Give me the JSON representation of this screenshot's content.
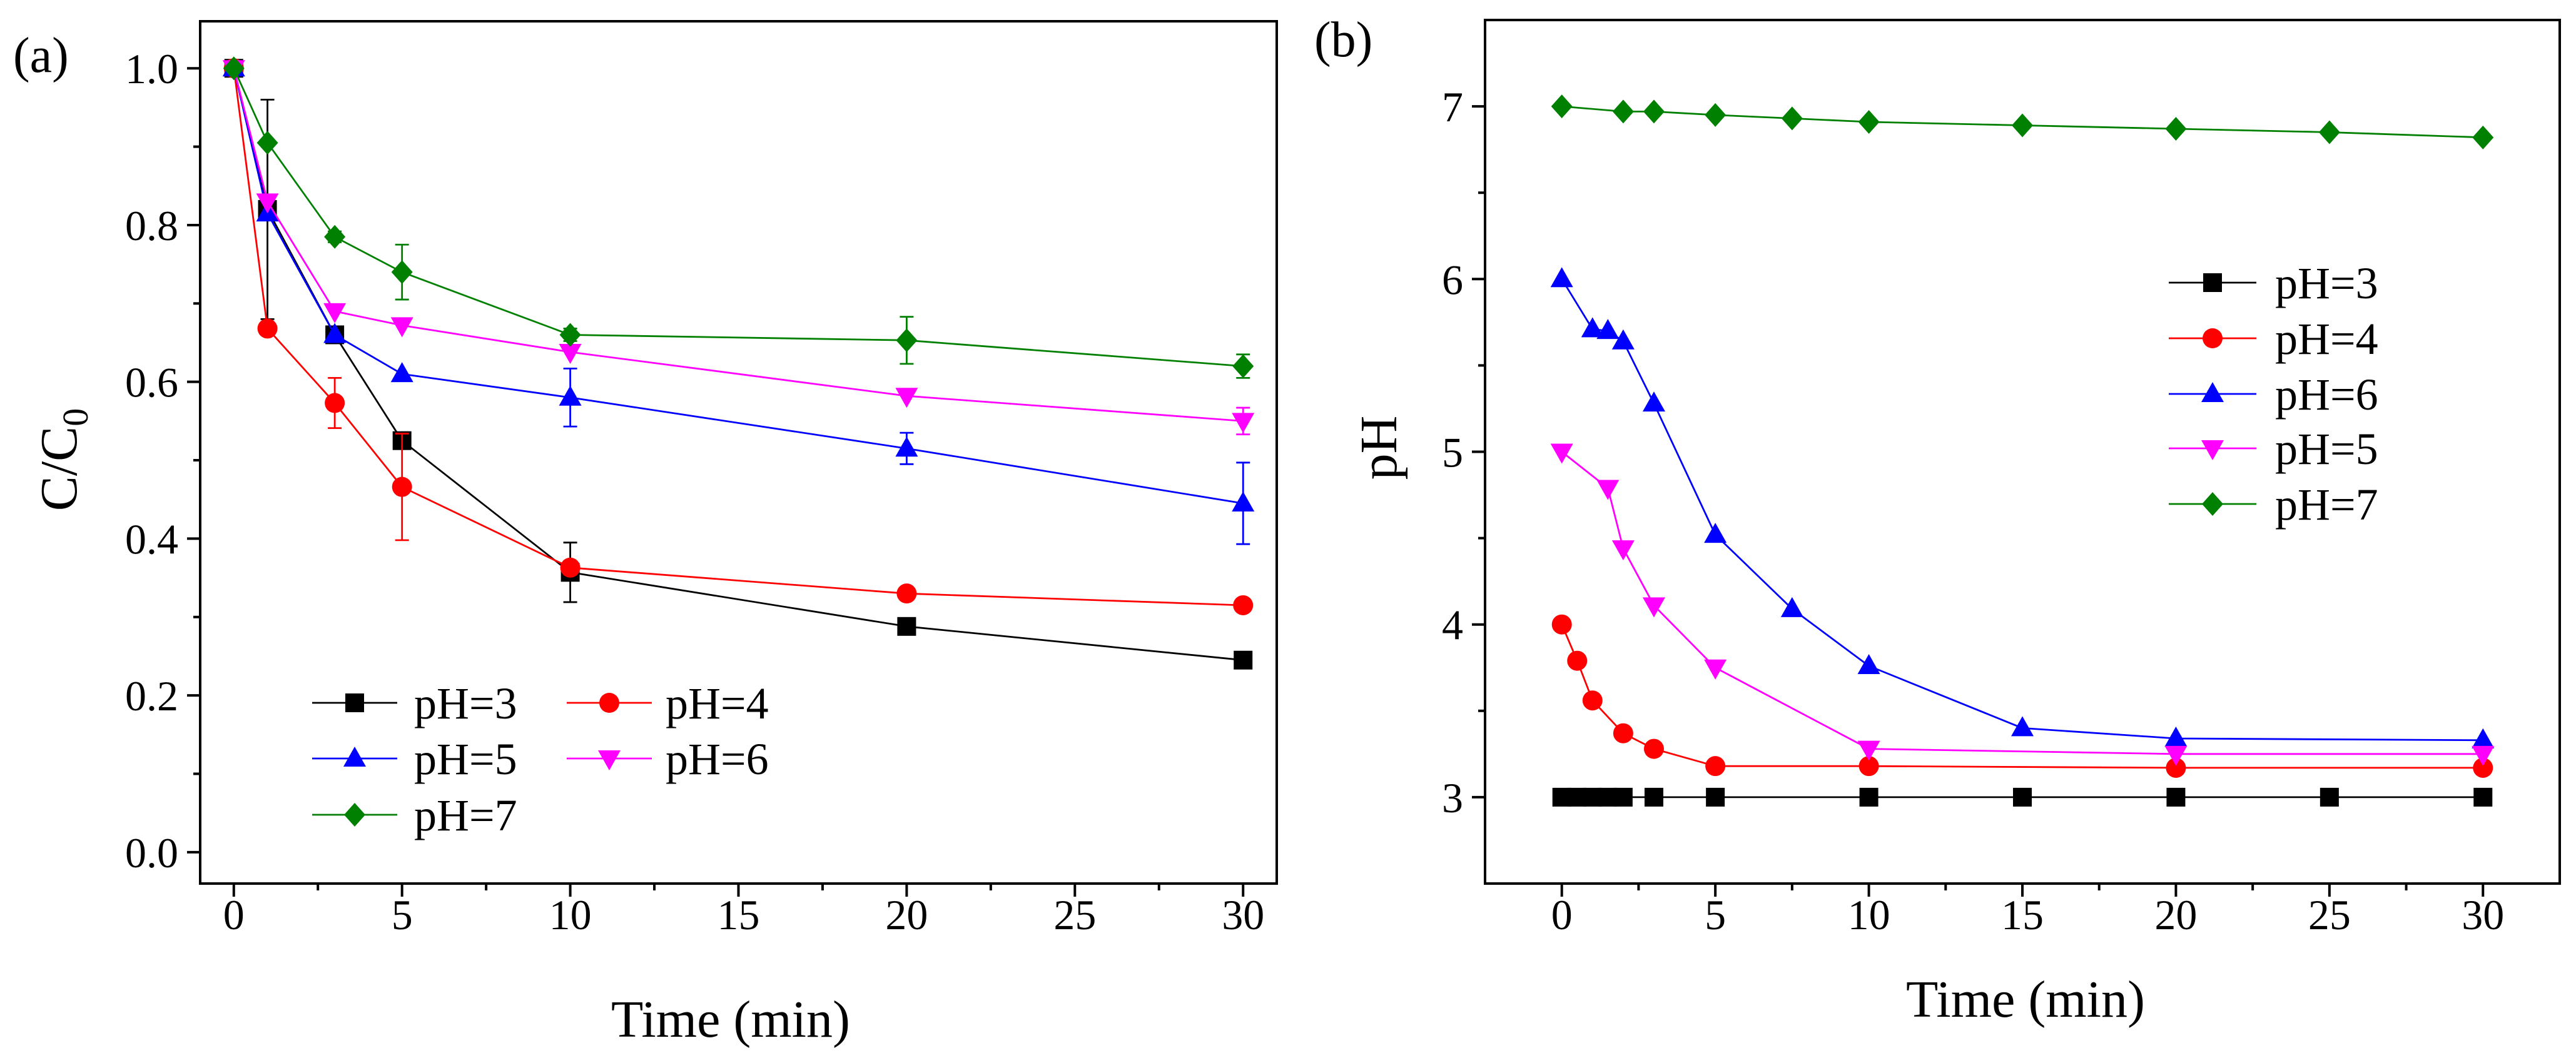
{
  "chart_data": [
    {
      "panel": "(a)",
      "type": "line",
      "title": "",
      "xlabel": "Time (min)",
      "ylabel": {
        "text": "C/C",
        "subscript": "0"
      },
      "xlim": [
        -1,
        31
      ],
      "ylim": [
        -0.04,
        1.06
      ],
      "xticks": [
        0,
        5,
        10,
        15,
        20,
        25,
        30
      ],
      "xtick_labels": [
        "0",
        "5",
        "10",
        "15",
        "20",
        "25",
        "30"
      ],
      "x_minor_step": 2.5,
      "yticks": [
        0,
        0.2,
        0.4,
        0.6,
        0.8,
        1.0
      ],
      "ytick_labels": [
        "0.0",
        "0.2",
        "0.4",
        "0.6",
        "0.8",
        "1.0"
      ],
      "y_minor_step": 0.1,
      "grid": false,
      "legend_position": "lower-left, two columns",
      "series": [
        {
          "name": "pH=3",
          "color": "#000000",
          "marker": "square",
          "x": [
            0,
            1,
            3,
            5,
            10,
            20,
            30
          ],
          "y": [
            1.0,
            0.82,
            0.66,
            0.525,
            0.357,
            0.288,
            0.245
          ],
          "error": [
            0,
            0.14,
            0,
            0,
            0.038,
            0,
            0.008
          ]
        },
        {
          "name": "pH=4",
          "color": "#FF0000",
          "marker": "circle",
          "x": [
            0,
            1,
            3,
            5,
            10,
            20,
            30
          ],
          "y": [
            1.0,
            0.668,
            0.573,
            0.466,
            0.363,
            0.33,
            0.315
          ],
          "error": [
            0,
            0,
            0.032,
            0.068,
            0,
            0.006,
            0.008
          ]
        },
        {
          "name": "pH=5",
          "color": "#0000FF",
          "marker": "triangle-up",
          "x": [
            0,
            1,
            3,
            5,
            10,
            20,
            30
          ],
          "y": [
            1.0,
            0.815,
            0.66,
            0.61,
            0.58,
            0.515,
            0.445
          ],
          "error": [
            0,
            0,
            0,
            0,
            0.037,
            0.02,
            0.052
          ]
        },
        {
          "name": "pH=6",
          "color": "#FF00FF",
          "marker": "triangle-down",
          "x": [
            0,
            1,
            3,
            5,
            10,
            20,
            30
          ],
          "y": [
            1.0,
            0.83,
            0.69,
            0.672,
            0.638,
            0.582,
            0.55
          ],
          "error": [
            0,
            0,
            0,
            0,
            0,
            0,
            0.017
          ]
        },
        {
          "name": "pH=7",
          "color": "#008000",
          "marker": "diamond",
          "x": [
            0,
            1,
            3,
            5,
            10,
            20,
            30
          ],
          "y": [
            1.0,
            0.905,
            0.785,
            0.74,
            0.66,
            0.653,
            0.62
          ],
          "error": [
            0,
            0,
            0.007,
            0.035,
            0.008,
            0.03,
            0.015
          ]
        }
      ]
    },
    {
      "panel": "(b)",
      "type": "line",
      "title": "",
      "xlabel": "Time (min)",
      "ylabel": {
        "text": "pH"
      },
      "xlim": [
        -2.5,
        32.5
      ],
      "ylim": [
        2.5,
        7.5
      ],
      "xticks": [
        0,
        5,
        10,
        15,
        20,
        25,
        30
      ],
      "xtick_labels": [
        "0",
        "5",
        "10",
        "15",
        "20",
        "25",
        "30"
      ],
      "x_minor_step": 2.5,
      "yticks": [
        3,
        4,
        5,
        6,
        7
      ],
      "ytick_labels": [
        "3",
        "4",
        "5",
        "6",
        "7"
      ],
      "y_minor_step": 0.5,
      "grid": false,
      "legend_position": "right, middle",
      "series": [
        {
          "name": "pH=3",
          "color": "#000000",
          "marker": "square",
          "x": [
            0,
            0.5,
            1,
            1.5,
            2,
            3,
            5,
            10,
            15,
            20,
            25,
            30
          ],
          "y": [
            3,
            3,
            3,
            3,
            3,
            3,
            3,
            3,
            3,
            3,
            3,
            3
          ]
        },
        {
          "name": "pH=4",
          "color": "#FF0000",
          "marker": "circle",
          "x": [
            0,
            0.5,
            1,
            2,
            3,
            5,
            10,
            20,
            30
          ],
          "y": [
            4.0,
            3.79,
            3.56,
            3.37,
            3.28,
            3.18,
            3.18,
            3.17,
            3.17
          ]
        },
        {
          "name": "pH=6",
          "color": "#0000FF",
          "marker": "triangle-up",
          "x": [
            0,
            1,
            1.5,
            2,
            3,
            5,
            7.5,
            10,
            15,
            20,
            30
          ],
          "y": [
            6.0,
            5.71,
            5.7,
            5.64,
            5.28,
            4.52,
            4.09,
            3.76,
            3.4,
            3.34,
            3.33
          ]
        },
        {
          "name": "pH=5",
          "color": "#FF00FF",
          "marker": "triangle-down",
          "x": [
            0,
            1.5,
            2,
            3,
            5,
            10,
            20,
            30
          ],
          "y": [
            5.0,
            4.79,
            4.44,
            4.11,
            3.75,
            3.28,
            3.25,
            3.25
          ]
        },
        {
          "name": "pH=7",
          "color": "#008000",
          "marker": "diamond",
          "x": [
            0,
            2,
            3,
            5,
            7.5,
            10,
            15,
            20,
            25,
            30
          ],
          "y": [
            7.0,
            6.97,
            6.97,
            6.95,
            6.93,
            6.91,
            6.89,
            6.87,
            6.85,
            6.82
          ]
        }
      ]
    }
  ]
}
